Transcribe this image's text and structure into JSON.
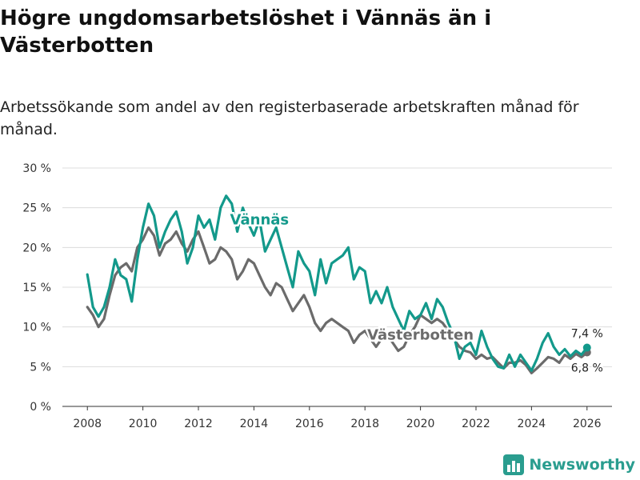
{
  "title": "Högre ungdomsarbetslöshet i Vännäs än i Västerbotten",
  "subtitle": "Arbetssökande som andel av den registerbaserade arbetskraften månad för månad.",
  "brand": {
    "name": "Newsworthy",
    "color": "#2a9d8f"
  },
  "chart_data": {
    "type": "line",
    "y_tick_labels": [
      "0 %",
      "5 %",
      "10 %",
      "15 %",
      "20 %",
      "25 %",
      "30 %"
    ],
    "y_ticks": [
      0,
      5,
      10,
      15,
      20,
      25,
      30
    ],
    "x_ticks": [
      2008,
      2010,
      2012,
      2014,
      2016,
      2018,
      2020,
      2022,
      2024,
      2026
    ],
    "xlim": [
      2007.1,
      2026.9
    ],
    "ylim": [
      0,
      30
    ],
    "series": [
      {
        "name": "Vännäs",
        "color": "#13998b",
        "end_label": "7,4 %",
        "label_at": [
          2014.2,
          23.5
        ],
        "points": [
          [
            2008.0,
            16.6
          ],
          [
            2008.2,
            12.5
          ],
          [
            2008.4,
            11.3
          ],
          [
            2008.6,
            12.5
          ],
          [
            2008.8,
            15.0
          ],
          [
            2009.0,
            18.5
          ],
          [
            2009.2,
            16.5
          ],
          [
            2009.4,
            16.0
          ],
          [
            2009.6,
            13.2
          ],
          [
            2009.8,
            18.5
          ],
          [
            2010.0,
            22.5
          ],
          [
            2010.2,
            25.5
          ],
          [
            2010.4,
            24.0
          ],
          [
            2010.6,
            20.0
          ],
          [
            2010.8,
            22.0
          ],
          [
            2011.0,
            23.5
          ],
          [
            2011.2,
            24.5
          ],
          [
            2011.4,
            22.0
          ],
          [
            2011.6,
            18.0
          ],
          [
            2011.8,
            20.0
          ],
          [
            2012.0,
            24.0
          ],
          [
            2012.2,
            22.5
          ],
          [
            2012.4,
            23.5
          ],
          [
            2012.6,
            21.0
          ],
          [
            2012.8,
            25.0
          ],
          [
            2013.0,
            26.5
          ],
          [
            2013.2,
            25.5
          ],
          [
            2013.4,
            22.0
          ],
          [
            2013.6,
            25.0
          ],
          [
            2013.8,
            23.0
          ],
          [
            2014.0,
            21.5
          ],
          [
            2014.2,
            23.5
          ],
          [
            2014.4,
            19.5
          ],
          [
            2014.6,
            21.0
          ],
          [
            2014.8,
            22.5
          ],
          [
            2015.0,
            20.0
          ],
          [
            2015.2,
            17.5
          ],
          [
            2015.4,
            15.0
          ],
          [
            2015.6,
            19.5
          ],
          [
            2015.8,
            18.0
          ],
          [
            2016.0,
            17.0
          ],
          [
            2016.2,
            14.0
          ],
          [
            2016.4,
            18.5
          ],
          [
            2016.6,
            15.5
          ],
          [
            2016.8,
            18.0
          ],
          [
            2017.0,
            18.5
          ],
          [
            2017.2,
            19.0
          ],
          [
            2017.4,
            20.0
          ],
          [
            2017.6,
            16.0
          ],
          [
            2017.8,
            17.5
          ],
          [
            2018.0,
            17.0
          ],
          [
            2018.2,
            13.0
          ],
          [
            2018.4,
            14.5
          ],
          [
            2018.6,
            13.0
          ],
          [
            2018.8,
            15.0
          ],
          [
            2019.0,
            12.5
          ],
          [
            2019.2,
            11.0
          ],
          [
            2019.4,
            9.5
          ],
          [
            2019.6,
            12.0
          ],
          [
            2019.8,
            11.0
          ],
          [
            2020.0,
            11.5
          ],
          [
            2020.2,
            13.0
          ],
          [
            2020.4,
            11.0
          ],
          [
            2020.6,
            13.5
          ],
          [
            2020.8,
            12.5
          ],
          [
            2021.0,
            10.5
          ],
          [
            2021.2,
            9.0
          ],
          [
            2021.4,
            6.0
          ],
          [
            2021.6,
            7.5
          ],
          [
            2021.8,
            8.0
          ],
          [
            2022.0,
            6.5
          ],
          [
            2022.2,
            9.5
          ],
          [
            2022.4,
            7.5
          ],
          [
            2022.6,
            6.0
          ],
          [
            2022.8,
            5.0
          ],
          [
            2023.0,
            4.8
          ],
          [
            2023.2,
            6.5
          ],
          [
            2023.4,
            5.0
          ],
          [
            2023.6,
            6.5
          ],
          [
            2023.8,
            5.5
          ],
          [
            2024.0,
            4.5
          ],
          [
            2024.2,
            6.0
          ],
          [
            2024.4,
            8.0
          ],
          [
            2024.6,
            9.2
          ],
          [
            2024.8,
            7.5
          ],
          [
            2025.0,
            6.5
          ],
          [
            2025.2,
            7.2
          ],
          [
            2025.4,
            6.3
          ],
          [
            2025.6,
            7.0
          ],
          [
            2025.8,
            6.5
          ],
          [
            2026.0,
            7.4
          ]
        ]
      },
      {
        "name": "Västerbotten",
        "color": "#6b6b6b",
        "end_label": "6,8 %",
        "label_at": [
          2020.0,
          9.0
        ],
        "points": [
          [
            2008.0,
            12.5
          ],
          [
            2008.2,
            11.5
          ],
          [
            2008.4,
            10.0
          ],
          [
            2008.6,
            11.0
          ],
          [
            2008.8,
            14.0
          ],
          [
            2009.0,
            16.5
          ],
          [
            2009.2,
            17.5
          ],
          [
            2009.4,
            18.0
          ],
          [
            2009.6,
            17.0
          ],
          [
            2009.8,
            20.0
          ],
          [
            2010.0,
            21.0
          ],
          [
            2010.2,
            22.5
          ],
          [
            2010.4,
            21.5
          ],
          [
            2010.6,
            19.0
          ],
          [
            2010.8,
            20.5
          ],
          [
            2011.0,
            21.0
          ],
          [
            2011.2,
            22.0
          ],
          [
            2011.4,
            20.5
          ],
          [
            2011.6,
            19.5
          ],
          [
            2011.8,
            21.0
          ],
          [
            2012.0,
            22.0
          ],
          [
            2012.2,
            20.0
          ],
          [
            2012.4,
            18.0
          ],
          [
            2012.6,
            18.5
          ],
          [
            2012.8,
            20.0
          ],
          [
            2013.0,
            19.5
          ],
          [
            2013.2,
            18.5
          ],
          [
            2013.4,
            16.0
          ],
          [
            2013.6,
            17.0
          ],
          [
            2013.8,
            18.5
          ],
          [
            2014.0,
            18.0
          ],
          [
            2014.2,
            16.5
          ],
          [
            2014.4,
            15.0
          ],
          [
            2014.6,
            14.0
          ],
          [
            2014.8,
            15.5
          ],
          [
            2015.0,
            15.0
          ],
          [
            2015.2,
            13.5
          ],
          [
            2015.4,
            12.0
          ],
          [
            2015.6,
            13.0
          ],
          [
            2015.8,
            14.0
          ],
          [
            2016.0,
            12.5
          ],
          [
            2016.2,
            10.5
          ],
          [
            2016.4,
            9.5
          ],
          [
            2016.6,
            10.5
          ],
          [
            2016.8,
            11.0
          ],
          [
            2017.0,
            10.5
          ],
          [
            2017.2,
            10.0
          ],
          [
            2017.4,
            9.5
          ],
          [
            2017.6,
            8.0
          ],
          [
            2017.8,
            9.0
          ],
          [
            2018.0,
            9.5
          ],
          [
            2018.2,
            8.5
          ],
          [
            2018.4,
            7.5
          ],
          [
            2018.6,
            8.5
          ],
          [
            2018.8,
            9.0
          ],
          [
            2019.0,
            8.0
          ],
          [
            2019.2,
            7.0
          ],
          [
            2019.4,
            7.5
          ],
          [
            2019.6,
            9.0
          ],
          [
            2019.8,
            10.0
          ],
          [
            2020.0,
            11.5
          ],
          [
            2020.2,
            11.0
          ],
          [
            2020.4,
            10.5
          ],
          [
            2020.6,
            11.0
          ],
          [
            2020.8,
            10.5
          ],
          [
            2021.0,
            9.5
          ],
          [
            2021.2,
            8.5
          ],
          [
            2021.4,
            7.5
          ],
          [
            2021.6,
            7.0
          ],
          [
            2021.8,
            6.8
          ],
          [
            2022.0,
            6.0
          ],
          [
            2022.2,
            6.5
          ],
          [
            2022.4,
            6.0
          ],
          [
            2022.6,
            6.2
          ],
          [
            2022.8,
            5.5
          ],
          [
            2023.0,
            4.8
          ],
          [
            2023.2,
            5.5
          ],
          [
            2023.4,
            5.5
          ],
          [
            2023.6,
            5.8
          ],
          [
            2023.8,
            5.2
          ],
          [
            2024.0,
            4.2
          ],
          [
            2024.2,
            4.8
          ],
          [
            2024.4,
            5.5
          ],
          [
            2024.6,
            6.2
          ],
          [
            2024.8,
            6.0
          ],
          [
            2025.0,
            5.5
          ],
          [
            2025.2,
            6.5
          ],
          [
            2025.4,
            6.0
          ],
          [
            2025.6,
            6.6
          ],
          [
            2025.8,
            6.2
          ],
          [
            2026.0,
            6.8
          ]
        ]
      }
    ]
  }
}
